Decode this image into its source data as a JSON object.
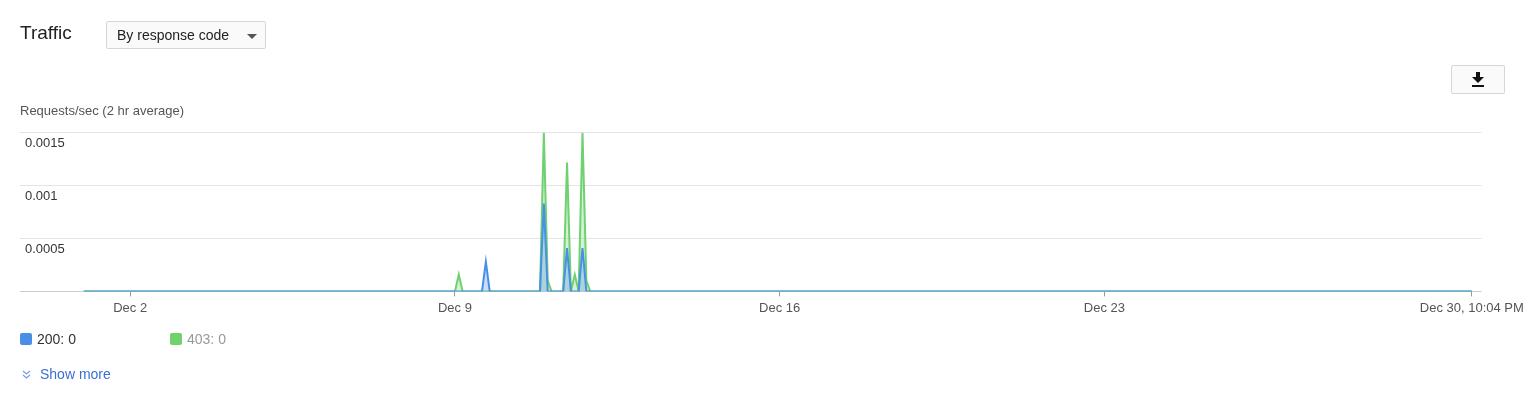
{
  "chart_data": {
    "type": "area",
    "title": "Traffic",
    "subtitle": "By response code",
    "ylabel": "Requests/sec (2 hr average)",
    "x": [
      "--12-01T00:00",
      "--12-09T00:00",
      "--12-09T02:00",
      "--12-09T04:00",
      "--12-09T14:00",
      "--12-09T16:00",
      "--12-09T18:00",
      "--12-10T20:00",
      "--12-10T22:00",
      "--12-11T00:00",
      "--12-11T02:00",
      "--12-11T08:00",
      "--12-11T10:00",
      "--12-11T12:00",
      "--12-11T14:00",
      "--12-11T16:00",
      "--12-11T18:00",
      "--12-11T20:00",
      "--12-11T22:00",
      "--12-30T22:04"
    ],
    "series": [
      {
        "name": "200: 0",
        "color": "#4a8fe7",
        "values": [
          0,
          0,
          0,
          0,
          0,
          0.00028,
          0,
          0,
          0.00083,
          0,
          0,
          0,
          0.00041,
          0,
          0,
          0,
          0.00041,
          0,
          0,
          0
        ]
      },
      {
        "name": "403: 0",
        "color": "#6fd16f",
        "values": [
          0,
          0,
          0.00016,
          0,
          0,
          0,
          0,
          0,
          0.0015,
          0.0001,
          0,
          0,
          0.00122,
          0,
          0.00016,
          0,
          0.0015,
          0.0001,
          0,
          0
        ]
      }
    ],
    "xlim": [
      "--11-29T15:00",
      "--12-31T03:00"
    ],
    "xticks": [
      {
        "value": "--12-02T00:00",
        "label": "Dec 2"
      },
      {
        "value": "--12-09T00:00",
        "label": "Dec 9"
      },
      {
        "value": "--12-16T00:00",
        "label": "Dec 16"
      },
      {
        "value": "--12-23T00:00",
        "label": "Dec 23"
      },
      {
        "value": "--12-30T22:04",
        "label": "Dec 30, 10:04 PM"
      }
    ],
    "ylim": [
      0,
      0.0015
    ],
    "yticks": [
      {
        "value": 0,
        "label": null
      },
      0.0005,
      0.001,
      0.0015
    ],
    "grid": "y",
    "legend": "bottom left",
    "annotations": [
      "Show more"
    ]
  }
}
